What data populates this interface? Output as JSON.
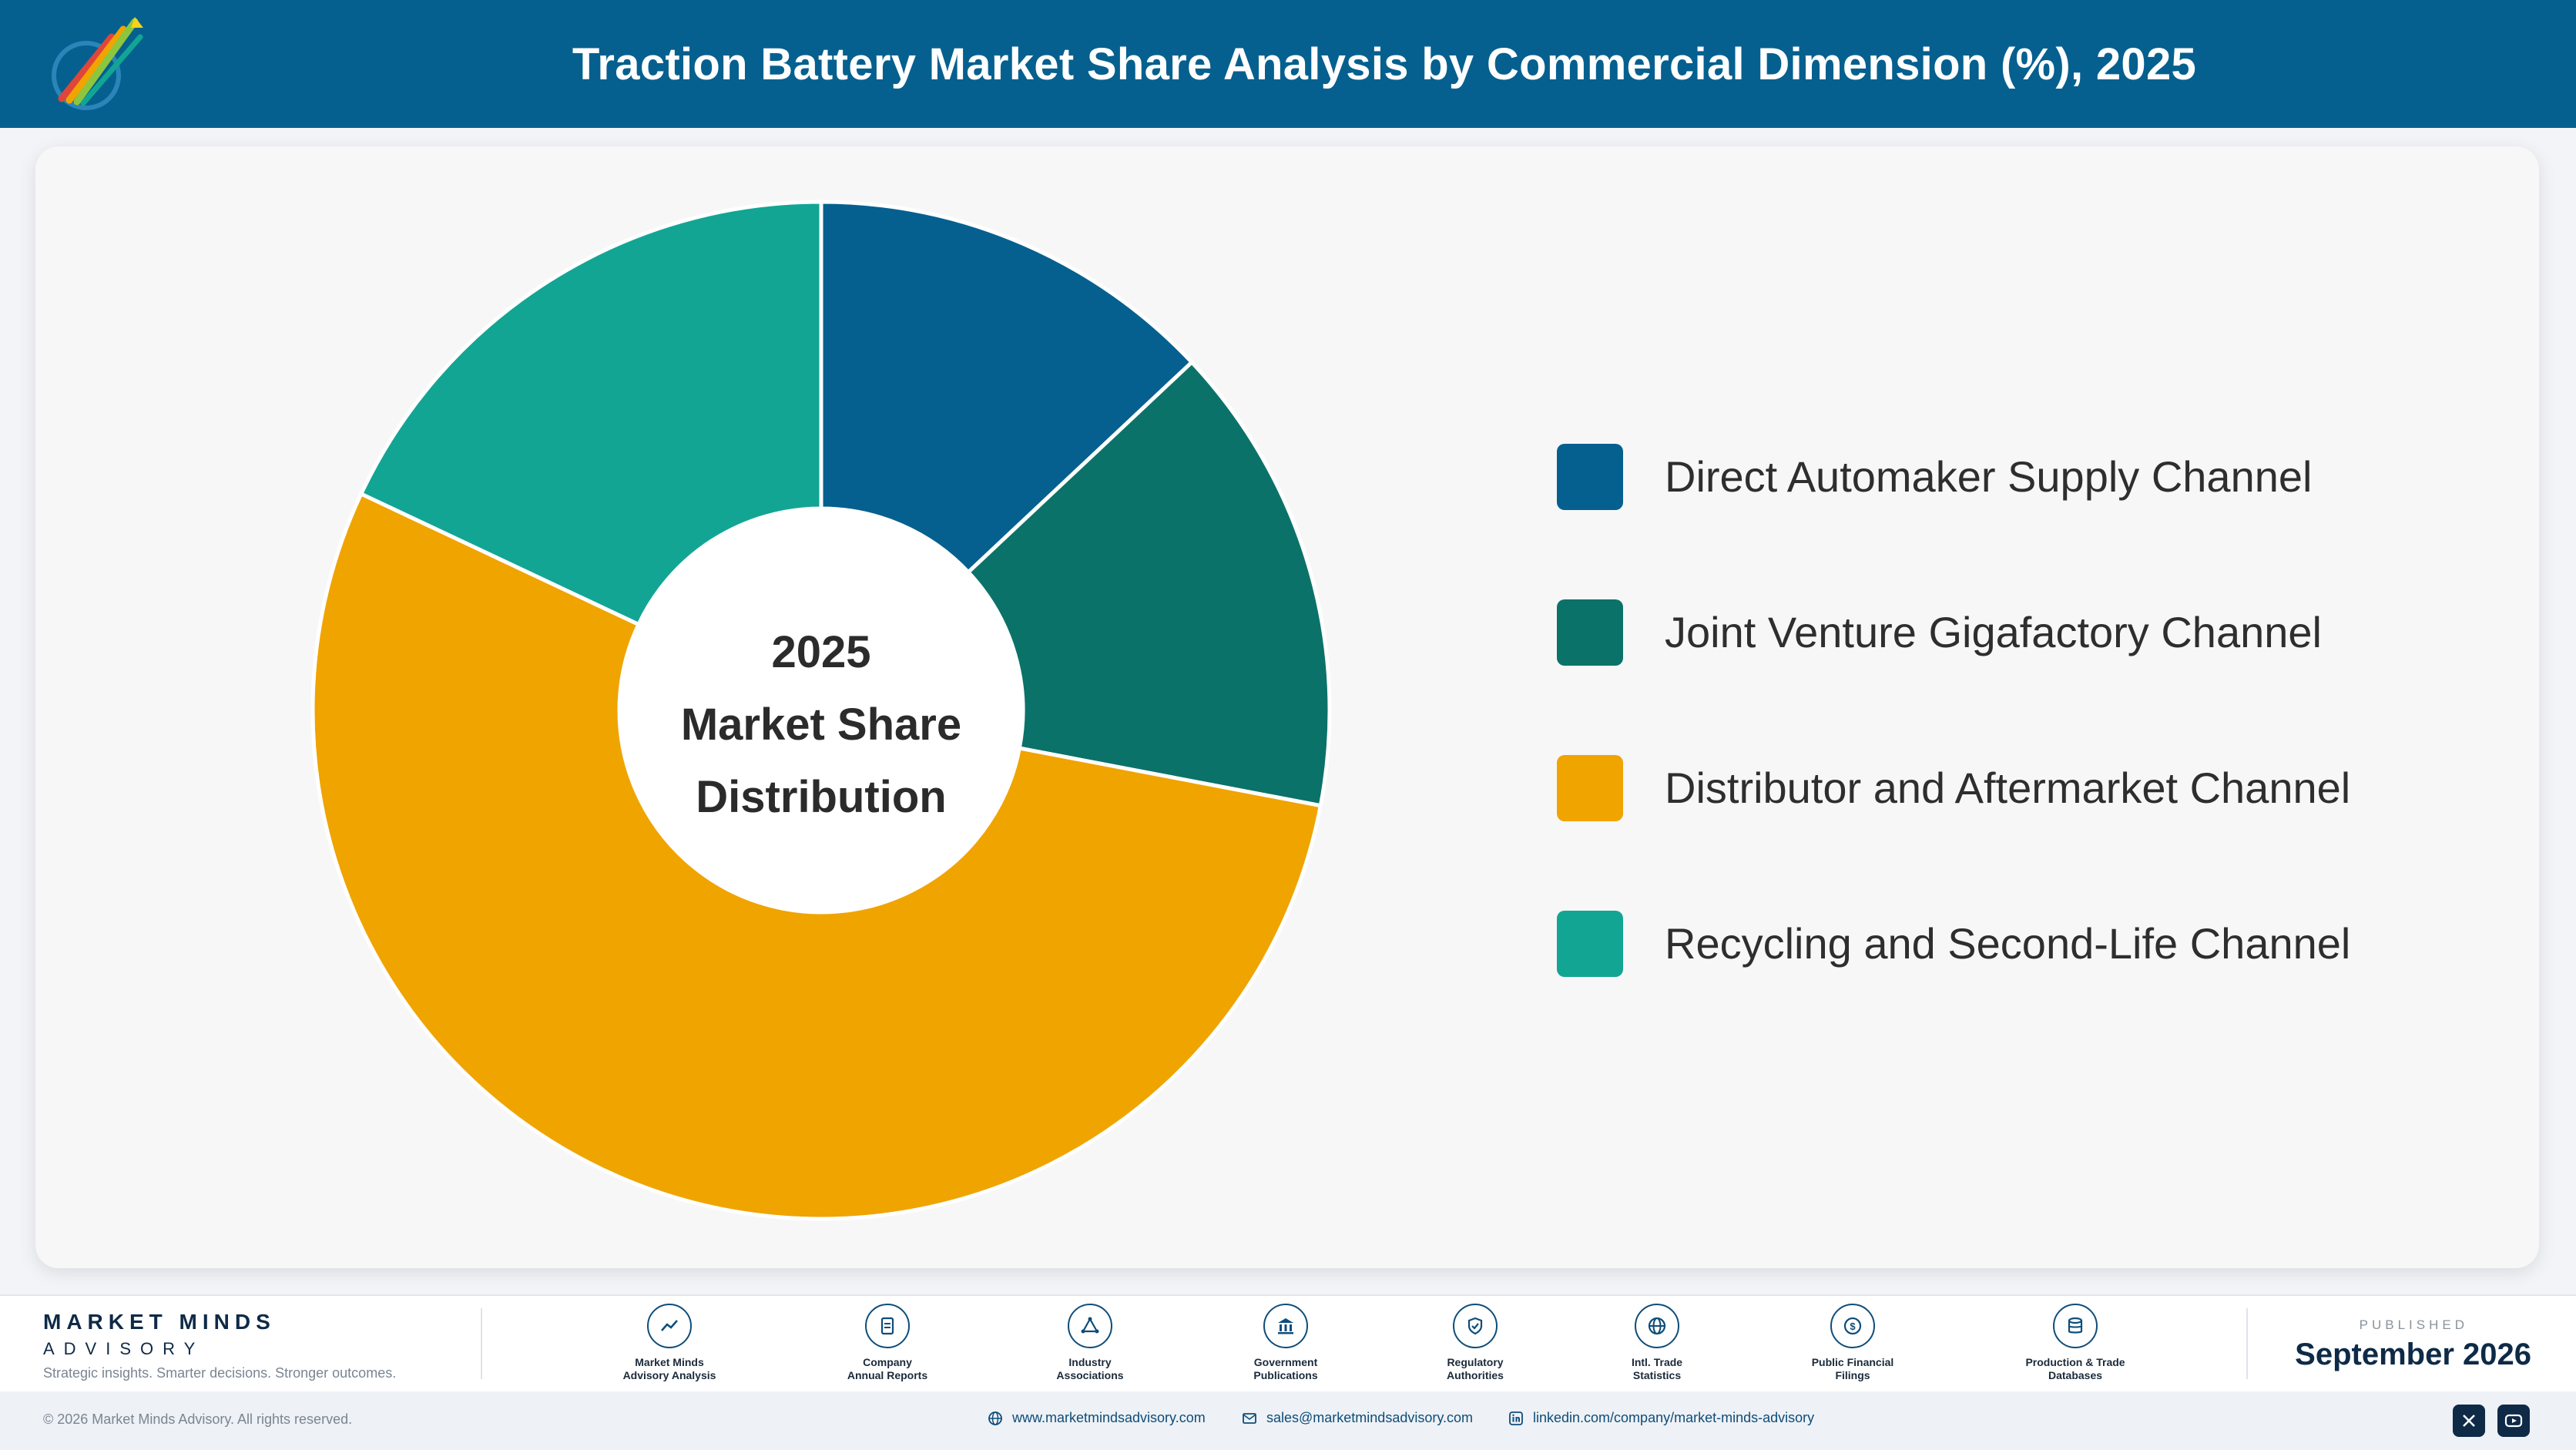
{
  "header": {
    "title": "Traction Battery Market Share Analysis by Commercial Dimension (%), 2025",
    "logo_text": "Market Minds Advisory"
  },
  "chart_data": {
    "type": "pie",
    "style": "donut",
    "title": "Traction Battery Market Share Analysis by Commercial Dimension (%), 2025",
    "center_label": [
      "2025",
      "Market Share",
      "Distribution"
    ],
    "categories": [
      "Direct Automaker Supply Channel",
      "Joint Venture Gigafactory Channel",
      "Distributor and Aftermarket Channel",
      "Recycling and Second-Life Channel"
    ],
    "values": [
      13,
      15,
      54,
      18
    ],
    "colors": [
      "#05608f",
      "#0b7269",
      "#f0a400",
      "#12a594"
    ],
    "legend_position": "right"
  },
  "footer": {
    "brand_name": "MARKET MINDS",
    "brand_sub": "ADVISORY",
    "tagline": "Strategic insights. Smarter decisions. Stronger outcomes.",
    "sources": [
      {
        "label": "Market Minds\nAdvisory Analysis",
        "icon": "chart-line-icon"
      },
      {
        "label": "Company\nAnnual Reports",
        "icon": "document-icon"
      },
      {
        "label": "Industry\nAssociations",
        "icon": "network-icon"
      },
      {
        "label": "Government\nPublications",
        "icon": "government-building-icon"
      },
      {
        "label": "Regulatory\nAuthorities",
        "icon": "shield-check-icon"
      },
      {
        "label": "Intl. Trade\nStatistics",
        "icon": "globe-icon"
      },
      {
        "label": "Public Financial\nFilings",
        "icon": "dollar-coin-icon"
      },
      {
        "label": "Production & Trade\nDatabases",
        "icon": "database-icon"
      }
    ],
    "published_label": "PUBLISHED",
    "published_date": "September 2026"
  },
  "bottom_bar": {
    "copyright": "© 2026 Market Minds Advisory. All rights reserved.",
    "website": "www.marketmindsadvisory.com",
    "email": "sales@marketmindsadvisory.com",
    "linkedin": "linkedin.com/company/market-minds-advisory"
  }
}
